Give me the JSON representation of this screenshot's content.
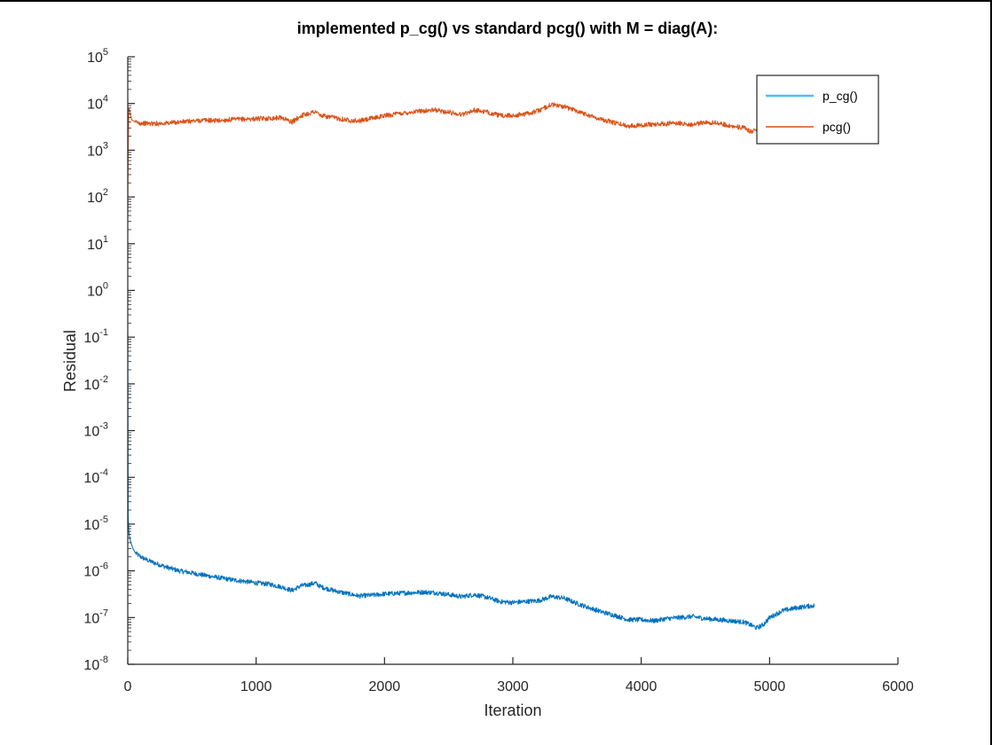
{
  "chart_data": {
    "type": "line",
    "title": "implemented p_cg() vs standard pcg() with M = diag(A):",
    "xlabel": "Iteration",
    "ylabel": "Residual",
    "xlim": [
      0,
      6000
    ],
    "ylim": [
      1e-08,
      100000
    ],
    "yscale": "log",
    "grid": false,
    "legend_position": "top-right",
    "x_ticks": [
      {
        "value": 0,
        "label": "0"
      },
      {
        "value": 1000,
        "label": "1000"
      },
      {
        "value": 2000,
        "label": "2000"
      },
      {
        "value": 3000,
        "label": "3000"
      },
      {
        "value": 4000,
        "label": "4000"
      },
      {
        "value": 5000,
        "label": "5000"
      },
      {
        "value": 6000,
        "label": "6000"
      }
    ],
    "y_ticks": [
      {
        "value": 1e-08,
        "base": "10",
        "exp": "-8"
      },
      {
        "value": 1e-07,
        "base": "10",
        "exp": "-7"
      },
      {
        "value": 1e-06,
        "base": "10",
        "exp": "-6"
      },
      {
        "value": 1e-05,
        "base": "10",
        "exp": "-5"
      },
      {
        "value": 0.0001,
        "base": "10",
        "exp": "-4"
      },
      {
        "value": 0.001,
        "base": "10",
        "exp": "-3"
      },
      {
        "value": 0.01,
        "base": "10",
        "exp": "-2"
      },
      {
        "value": 0.1,
        "base": "10",
        "exp": "-1"
      },
      {
        "value": 1,
        "base": "10",
        "exp": "0"
      },
      {
        "value": 10,
        "base": "10",
        "exp": "1"
      },
      {
        "value": 100,
        "base": "10",
        "exp": "2"
      },
      {
        "value": 1000,
        "base": "10",
        "exp": "3"
      },
      {
        "value": 10000,
        "base": "10",
        "exp": "4"
      },
      {
        "value": 100000,
        "base": "10",
        "exp": "5"
      }
    ],
    "series": [
      {
        "name": "p_cg()",
        "color": "#0072bd",
        "legend_color": "#4dbeee",
        "noise_amplitude_decades": 0.05,
        "x": [
          0,
          3,
          8,
          15,
          25,
          40,
          60,
          100,
          150,
          200,
          300,
          400,
          500,
          600,
          700,
          800,
          900,
          1000,
          1100,
          1200,
          1280,
          1350,
          1400,
          1460,
          1500,
          1600,
          1700,
          1800,
          1900,
          2000,
          2100,
          2200,
          2300,
          2400,
          2500,
          2600,
          2700,
          2800,
          2900,
          3000,
          3100,
          3200,
          3300,
          3400,
          3500,
          3600,
          3700,
          3800,
          3900,
          4000,
          4100,
          4200,
          4300,
          4400,
          4500,
          4600,
          4700,
          4800,
          4850,
          4900,
          4950,
          5000,
          5100,
          5200,
          5300,
          5350
        ],
        "y": [
          0.12,
          1.5e-05,
          7e-06,
          5e-06,
          4e-06,
          3e-06,
          2.4e-06,
          2e-06,
          1.7e-06,
          1.5e-06,
          1.2e-06,
          1e-06,
          9e-07,
          8e-07,
          7.2e-07,
          6.5e-07,
          6e-07,
          5.5e-07,
          5.2e-07,
          4.5e-07,
          3.8e-07,
          4.8e-07,
          5e-07,
          5.5e-07,
          4.6e-07,
          3.8e-07,
          3.3e-07,
          2.9e-07,
          3e-07,
          3.2e-07,
          3.3e-07,
          3.4e-07,
          3.5e-07,
          3.4e-07,
          3.1e-07,
          2.8e-07,
          3.1e-07,
          2.7e-07,
          2.2e-07,
          2.1e-07,
          2.2e-07,
          2.3e-07,
          2.8e-07,
          2.6e-07,
          2e-07,
          1.6e-07,
          1.3e-07,
          1.1e-07,
          9e-08,
          9e-08,
          8.5e-08,
          9.5e-08,
          1e-07,
          1.05e-07,
          9.5e-08,
          9e-08,
          8.5e-08,
          8e-08,
          7e-08,
          6e-08,
          7e-08,
          1e-07,
          1.4e-07,
          1.6e-07,
          1.75e-07,
          1.8e-07
        ]
      },
      {
        "name": "pcg()",
        "color": "#d95319",
        "legend_color": "#d95319",
        "noise_amplitude_decades": 0.05,
        "x": [
          0,
          3,
          8,
          15,
          30,
          60,
          100,
          200,
          300,
          400,
          500,
          600,
          700,
          800,
          900,
          1000,
          1100,
          1200,
          1280,
          1350,
          1400,
          1460,
          1500,
          1600,
          1700,
          1800,
          1900,
          2000,
          2100,
          2200,
          2300,
          2400,
          2500,
          2600,
          2700,
          2800,
          2900,
          3000,
          3100,
          3200,
          3300,
          3400,
          3500,
          3600,
          3700,
          3800,
          3900,
          4000,
          4100,
          4200,
          4300,
          4400,
          4500,
          4600,
          4700,
          4800,
          4850,
          4900,
          4950,
          5000,
          5100,
          5200,
          5300,
          5350
        ],
        "y": [
          80,
          1000,
          8000,
          7000,
          4500,
          4000,
          3800,
          3700,
          3800,
          4000,
          4200,
          4400,
          4300,
          4500,
          4600,
          4700,
          4800,
          5000,
          4000,
          5500,
          6000,
          6800,
          5500,
          5000,
          4500,
          4200,
          4800,
          5500,
          6000,
          6500,
          7000,
          7200,
          6500,
          5800,
          7200,
          6500,
          5500,
          5500,
          6000,
          7000,
          9500,
          8500,
          7000,
          5500,
          4500,
          3800,
          3300,
          3500,
          3600,
          3700,
          3800,
          3500,
          4000,
          3800,
          3300,
          3000,
          2500,
          2800,
          3200,
          3000,
          2800,
          2600,
          2500,
          2400
        ]
      }
    ]
  }
}
